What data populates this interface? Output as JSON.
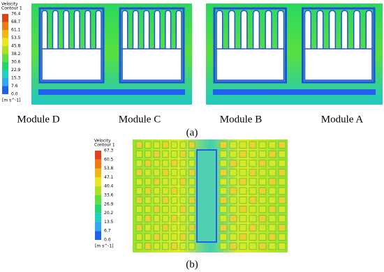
{
  "figure": {
    "panel_a": {
      "legend": {
        "title": [
          "Velocity",
          "Contour 1"
        ],
        "ticks": [
          "76.4",
          "68.7",
          "61.1",
          "53.5",
          "45.8",
          "38.2",
          "30.6",
          "22.9",
          "15.3",
          "7.6",
          "0.0"
        ],
        "unit": "[m s^-1]"
      },
      "modules": [
        "Module D",
        "Module C",
        "Module B",
        "Module A"
      ],
      "label": "(a)"
    },
    "panel_b": {
      "legend": {
        "title": [
          "Velocity",
          "Contour 1"
        ],
        "ticks": [
          "67.3",
          "60.5",
          "53.8",
          "47.1",
          "40.4",
          "33.6",
          "26.9",
          "20.2",
          "13.5",
          "6.7",
          "0.0"
        ],
        "unit": "[m s^-1]"
      },
      "label": "(b)"
    }
  }
}
